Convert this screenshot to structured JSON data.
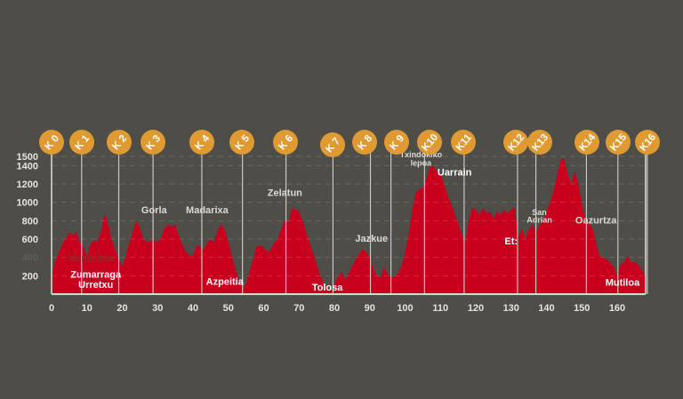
{
  "colors": {
    "background": "#4e4d48",
    "profile_fill": "#c8001e",
    "marker_circle": "#e09a32",
    "marker_text": "#ffffff",
    "marker_line": "#c9c7c0",
    "grid": "#6a6963",
    "axis_text": "#e6e4de",
    "axis_line": "#d8d6d0",
    "label_dark_bg": "#dcdad4",
    "label_on_red": "#ffffff",
    "label_faint": "#8a2a2a"
  },
  "chart_data": {
    "type": "area",
    "title": "",
    "xlabel": "",
    "ylabel": "",
    "xlim": [
      0,
      168
    ],
    "ylim": [
      0,
      1500
    ],
    "grid": true,
    "x_ticks": [
      0,
      10,
      20,
      30,
      40,
      50,
      60,
      70,
      80,
      90,
      100,
      110,
      120,
      130,
      140,
      150,
      160
    ],
    "y_ticks": [
      200,
      400,
      600,
      800,
      1000,
      1200,
      1400,
      1500
    ],
    "profile": [
      [
        0,
        220
      ],
      [
        1,
        350
      ],
      [
        2,
        450
      ],
      [
        3,
        540
      ],
      [
        4,
        610
      ],
      [
        5,
        670
      ],
      [
        6,
        640
      ],
      [
        7,
        680
      ],
      [
        8,
        560
      ],
      [
        9,
        520
      ],
      [
        10,
        410
      ],
      [
        11,
        540
      ],
      [
        12,
        590
      ],
      [
        13,
        570
      ],
      [
        14,
        680
      ],
      [
        15,
        880
      ],
      [
        16,
        760
      ],
      [
        17,
        600
      ],
      [
        18,
        480
      ],
      [
        19,
        380
      ],
      [
        20,
        300
      ],
      [
        21,
        420
      ],
      [
        22,
        560
      ],
      [
        23,
        680
      ],
      [
        24,
        800
      ],
      [
        25,
        720
      ],
      [
        26,
        600
      ],
      [
        27,
        560
      ],
      [
        28,
        580
      ],
      [
        29,
        590
      ],
      [
        30,
        560
      ],
      [
        31,
        620
      ],
      [
        32,
        720
      ],
      [
        33,
        760
      ],
      [
        34,
        730
      ],
      [
        35,
        760
      ],
      [
        36,
        640
      ],
      [
        37,
        540
      ],
      [
        38,
        460
      ],
      [
        39,
        420
      ],
      [
        40,
        420
      ],
      [
        41,
        530
      ],
      [
        42,
        520
      ],
      [
        43,
        480
      ],
      [
        44,
        560
      ],
      [
        45,
        600
      ],
      [
        46,
        560
      ],
      [
        47,
        700
      ],
      [
        48,
        760
      ],
      [
        49,
        700
      ],
      [
        50,
        560
      ],
      [
        51,
        420
      ],
      [
        52,
        280
      ],
      [
        53,
        150
      ],
      [
        54,
        60
      ],
      [
        55,
        120
      ],
      [
        56,
        250
      ],
      [
        57,
        380
      ],
      [
        58,
        520
      ],
      [
        59,
        530
      ],
      [
        60,
        510
      ],
      [
        61,
        460
      ],
      [
        62,
        480
      ],
      [
        63,
        560
      ],
      [
        64,
        600
      ],
      [
        65,
        720
      ],
      [
        66,
        800
      ],
      [
        67,
        780
      ],
      [
        68,
        940
      ],
      [
        69,
        920
      ],
      [
        70,
        900
      ],
      [
        71,
        800
      ],
      [
        72,
        680
      ],
      [
        73,
        560
      ],
      [
        74,
        440
      ],
      [
        75,
        320
      ],
      [
        76,
        200
      ],
      [
        77,
        120
      ],
      [
        78,
        60
      ],
      [
        79,
        30
      ],
      [
        80,
        90
      ],
      [
        81,
        200
      ],
      [
        82,
        240
      ],
      [
        83,
        160
      ],
      [
        84,
        220
      ],
      [
        85,
        300
      ],
      [
        86,
        380
      ],
      [
        87,
        440
      ],
      [
        88,
        490
      ],
      [
        89,
        460
      ],
      [
        90,
        400
      ],
      [
        91,
        280
      ],
      [
        92,
        200
      ],
      [
        93,
        170
      ],
      [
        94,
        300
      ],
      [
        95,
        220
      ],
      [
        96,
        180
      ],
      [
        97,
        190
      ],
      [
        98,
        230
      ],
      [
        99,
        300
      ],
      [
        100,
        450
      ],
      [
        101,
        650
      ],
      [
        102,
        900
      ],
      [
        103,
        1100
      ],
      [
        104,
        1140
      ],
      [
        105,
        1160
      ],
      [
        106,
        1250
      ],
      [
        107,
        1380
      ],
      [
        108,
        1400
      ],
      [
        109,
        1330
      ],
      [
        110,
        1320
      ],
      [
        111,
        1200
      ],
      [
        112,
        1080
      ],
      [
        113,
        980
      ],
      [
        114,
        880
      ],
      [
        115,
        780
      ],
      [
        116,
        660
      ],
      [
        117,
        560
      ],
      [
        118,
        800
      ],
      [
        119,
        940
      ],
      [
        120,
        920
      ],
      [
        121,
        860
      ],
      [
        122,
        940
      ],
      [
        123,
        880
      ],
      [
        124,
        900
      ],
      [
        125,
        820
      ],
      [
        126,
        900
      ],
      [
        127,
        860
      ],
      [
        128,
        920
      ],
      [
        129,
        880
      ],
      [
        130,
        930
      ],
      [
        131,
        940
      ],
      [
        132,
        620
      ],
      [
        133,
        720
      ],
      [
        134,
        600
      ],
      [
        135,
        700
      ],
      [
        136,
        760
      ],
      [
        137,
        680
      ],
      [
        138,
        740
      ],
      [
        139,
        800
      ],
      [
        140,
        900
      ],
      [
        141,
        1000
      ],
      [
        142,
        1120
      ],
      [
        143,
        1300
      ],
      [
        144,
        1460
      ],
      [
        145,
        1480
      ],
      [
        146,
        1300
      ],
      [
        147,
        1200
      ],
      [
        148,
        1340
      ],
      [
        149,
        1200
      ],
      [
        150,
        980
      ],
      [
        151,
        820
      ],
      [
        152,
        780
      ],
      [
        153,
        720
      ],
      [
        154,
        560
      ],
      [
        155,
        420
      ],
      [
        156,
        400
      ],
      [
        157,
        380
      ],
      [
        158,
        340
      ],
      [
        159,
        300
      ],
      [
        160,
        200
      ],
      [
        161,
        330
      ],
      [
        162,
        340
      ],
      [
        163,
        420
      ],
      [
        164,
        340
      ],
      [
        165,
        350
      ],
      [
        166,
        320
      ],
      [
        167,
        260
      ],
      [
        168,
        200
      ]
    ],
    "markers": [
      {
        "label": "K 0",
        "km": 0
      },
      {
        "label": "K 1",
        "km": 8.5
      },
      {
        "label": "K 2",
        "km": 19
      },
      {
        "label": "K 3",
        "km": 28.7
      },
      {
        "label": "K 4",
        "km": 42.5
      },
      {
        "label": "K 5",
        "km": 54
      },
      {
        "label": "K 6",
        "km": 66.3
      },
      {
        "label": "K 7",
        "km": 79.6
      },
      {
        "label": "K 8",
        "km": 90.2
      },
      {
        "label": "K 9",
        "km": 96
      },
      {
        "label": "K10",
        "km": 105.5
      },
      {
        "label": "K11",
        "km": 116.7
      },
      {
        "label": "K12",
        "km": 131.8
      },
      {
        "label": "K13",
        "km": 137
      },
      {
        "label": "K14",
        "km": 151.3
      },
      {
        "label": "K15",
        "km": 160.2
      },
      {
        "label": "K16",
        "km": 168.5
      }
    ],
    "place_labels": [
      {
        "text": "Mandubia",
        "km": 11,
        "alt": 360,
        "style": "faint"
      },
      {
        "text": "Zumarraga",
        "km": 12.5,
        "alt": 180,
        "style": "on_red"
      },
      {
        "text": "Urretxu",
        "km": 12.5,
        "alt": 70,
        "style": "on_red"
      },
      {
        "text": "Gorla",
        "km": 29,
        "alt": 880,
        "style": "dark_bg"
      },
      {
        "text": "Madarixa",
        "km": 44,
        "alt": 880,
        "style": "dark_bg"
      },
      {
        "text": "Azpeitia",
        "km": 49,
        "alt": 100,
        "style": "on_red"
      },
      {
        "text": "Zelatun",
        "km": 66,
        "alt": 1070,
        "style": "dark_bg"
      },
      {
        "text": "Tolosa",
        "km": 78,
        "alt": 40,
        "style": "on_red"
      },
      {
        "text": "Jazkue",
        "km": 90.5,
        "alt": 570,
        "style": "dark_bg"
      },
      {
        "text": "Txindokiko",
        "km": 104.5,
        "alt": 1490,
        "style": "dark_bg_small"
      },
      {
        "text": "lepoa",
        "km": 104.5,
        "alt": 1400,
        "style": "dark_bg_small"
      },
      {
        "text": "Uarrain",
        "km": 114,
        "alt": 1290,
        "style": "on_red"
      },
      {
        "text": "Et:",
        "km": 130,
        "alt": 540,
        "style": "on_red"
      },
      {
        "text": "San",
        "km": 138,
        "alt": 860,
        "style": "dark_bg_small"
      },
      {
        "text": "Adrian",
        "km": 138,
        "alt": 780,
        "style": "dark_bg_small"
      },
      {
        "text": "Oazurtza",
        "km": 154,
        "alt": 770,
        "style": "dark_bg"
      },
      {
        "text": "Mutiloa",
        "km": 161.5,
        "alt": 90,
        "style": "on_red"
      }
    ]
  }
}
